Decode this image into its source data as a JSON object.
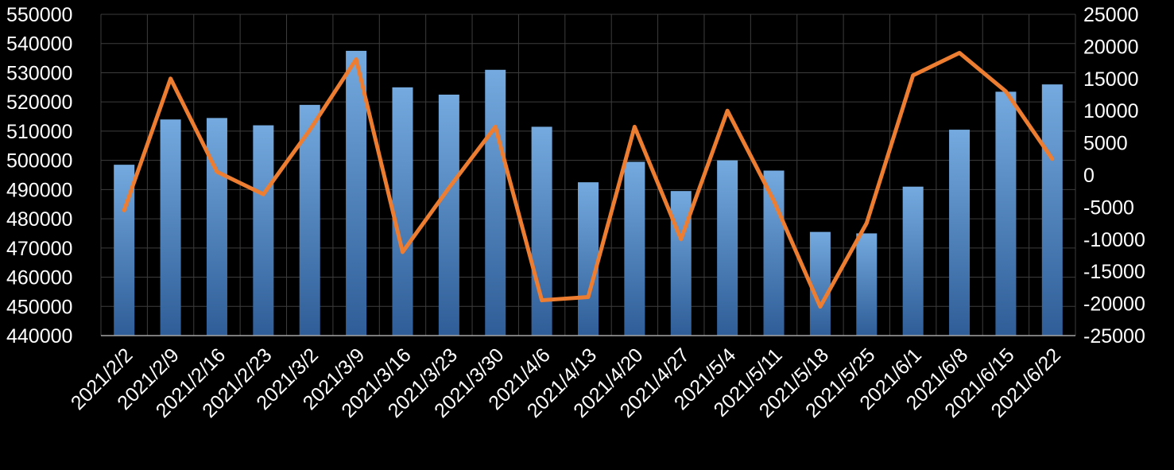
{
  "title": "",
  "colors": {
    "background": "#000000",
    "bar_top": "#74AADF",
    "bar_bottom": "#2F5D97",
    "line": "#ED7D31",
    "grid": "#3D3D3D",
    "axis_line": "#A6A6A6",
    "text": "#FFFFFF"
  },
  "chart_data": {
    "type": "bar",
    "subtype": "combo-bar-line",
    "grid": true,
    "legend": "none",
    "title": "",
    "xlabel": "",
    "ylabel": "",
    "categories": [
      "2021/2/2",
      "2021/2/9",
      "2021/2/16",
      "2021/2/23",
      "2021/3/2",
      "2021/3/9",
      "2021/3/16",
      "2021/3/23",
      "2021/3/30",
      "2021/4/6",
      "2021/4/13",
      "2021/4/20",
      "2021/4/27",
      "2021/5/4",
      "2021/5/11",
      "2021/5/18",
      "2021/5/25",
      "2021/6/1",
      "2021/6/8",
      "2021/6/15",
      "2021/6/22"
    ],
    "series": [
      {
        "name": "bars",
        "type": "bar",
        "axis": "left",
        "values": [
          498500,
          514000,
          514500,
          512000,
          519000,
          537500,
          525000,
          522500,
          531000,
          511500,
          492500,
          499500,
          489500,
          500000,
          496500,
          475500,
          475000,
          491000,
          510500,
          523500,
          526000
        ]
      },
      {
        "name": "line",
        "type": "line",
        "axis": "right",
        "values": [
          -5500,
          15000,
          500,
          -3000,
          7000,
          18000,
          -12000,
          -2000,
          7500,
          -19500,
          -19000,
          7500,
          -10000,
          10000,
          -4000,
          -20500,
          -7500,
          15500,
          19000,
          13000,
          2500
        ]
      }
    ],
    "y_axis_left": {
      "min": 440000,
      "max": 550000,
      "step": 10000,
      "tick_labels": [
        "550000",
        "540000",
        "530000",
        "520000",
        "510000",
        "500000",
        "490000",
        "480000",
        "470000",
        "460000",
        "450000",
        "440000"
      ]
    },
    "y_axis_right": {
      "min": -25000,
      "max": 25000,
      "step": 5000,
      "tick_labels": [
        "25000",
        "20000",
        "15000",
        "10000",
        "5000",
        "0",
        "-5000",
        "-10000",
        "-15000",
        "-20000",
        "-25000"
      ]
    }
  }
}
